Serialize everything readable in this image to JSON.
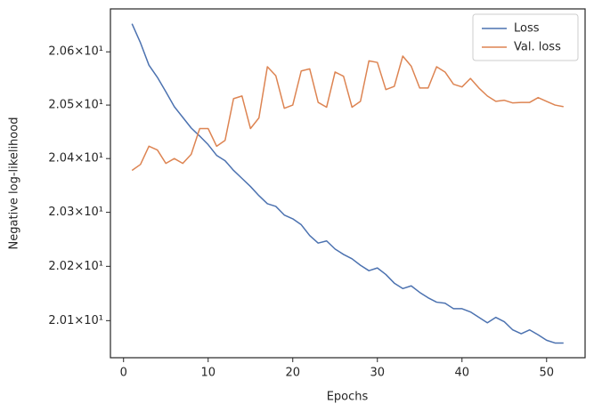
{
  "chart_data": {
    "type": "line",
    "xlabel": "Epochs",
    "ylabel": "Negative log-likelihood",
    "x": [
      1,
      2,
      3,
      4,
      5,
      6,
      7,
      8,
      9,
      10,
      11,
      12,
      13,
      14,
      15,
      16,
      17,
      18,
      19,
      20,
      21,
      22,
      23,
      24,
      25,
      26,
      27,
      28,
      29,
      30,
      31,
      32,
      33,
      34,
      35,
      36,
      37,
      38,
      39,
      40,
      41,
      42,
      43,
      44,
      45,
      46,
      47,
      48,
      49,
      50,
      51,
      52
    ],
    "series": [
      {
        "name": "Loss",
        "color": "#4c72b0",
        "values": [
          20.653,
          20.617,
          20.575,
          20.552,
          20.525,
          20.497,
          20.477,
          20.457,
          20.442,
          20.426,
          20.406,
          20.396,
          20.378,
          20.363,
          20.348,
          20.331,
          20.316,
          20.311,
          20.295,
          20.288,
          20.277,
          20.257,
          20.243,
          20.247,
          20.232,
          20.222,
          20.214,
          20.202,
          20.192,
          20.197,
          20.185,
          20.169,
          20.159,
          20.164,
          20.152,
          20.142,
          20.134,
          20.132,
          20.122,
          20.122,
          20.116,
          20.106,
          20.096,
          20.106,
          20.098,
          20.083,
          20.076,
          20.083,
          20.074,
          20.064,
          20.059,
          20.059
        ]
      },
      {
        "name": "Val. loss",
        "color": "#dd8452",
        "values": [
          20.378,
          20.389,
          20.423,
          20.416,
          20.391,
          20.4,
          20.391,
          20.408,
          20.456,
          20.456,
          20.423,
          20.434,
          20.512,
          20.517,
          20.456,
          20.476,
          20.572,
          20.555,
          20.494,
          20.5,
          20.564,
          20.568,
          20.505,
          20.496,
          20.562,
          20.554,
          20.496,
          20.507,
          20.583,
          20.58,
          20.529,
          20.535,
          20.592,
          20.573,
          20.532,
          20.532,
          20.572,
          20.562,
          20.539,
          20.534,
          20.55,
          20.532,
          20.517,
          20.507,
          20.509,
          20.504,
          20.505,
          20.505,
          20.514,
          20.507,
          20.5,
          20.497
        ]
      }
    ],
    "xlim": [
      -1.55,
      54.55
    ],
    "xticks": [
      0,
      10,
      20,
      30,
      40,
      50
    ],
    "ylim": [
      20.032,
      20.681
    ],
    "ylog": true,
    "yticks": [
      {
        "value": 20.1,
        "label": "2.01×10¹"
      },
      {
        "value": 20.2,
        "label": "2.02×10¹"
      },
      {
        "value": 20.3,
        "label": "2.03×10¹"
      },
      {
        "value": 20.4,
        "label": "2.04×10¹"
      },
      {
        "value": 20.5,
        "label": "2.05×10¹"
      },
      {
        "value": 20.6,
        "label": "2.06×10¹"
      }
    ],
    "grid": false,
    "legend": "upper right"
  }
}
